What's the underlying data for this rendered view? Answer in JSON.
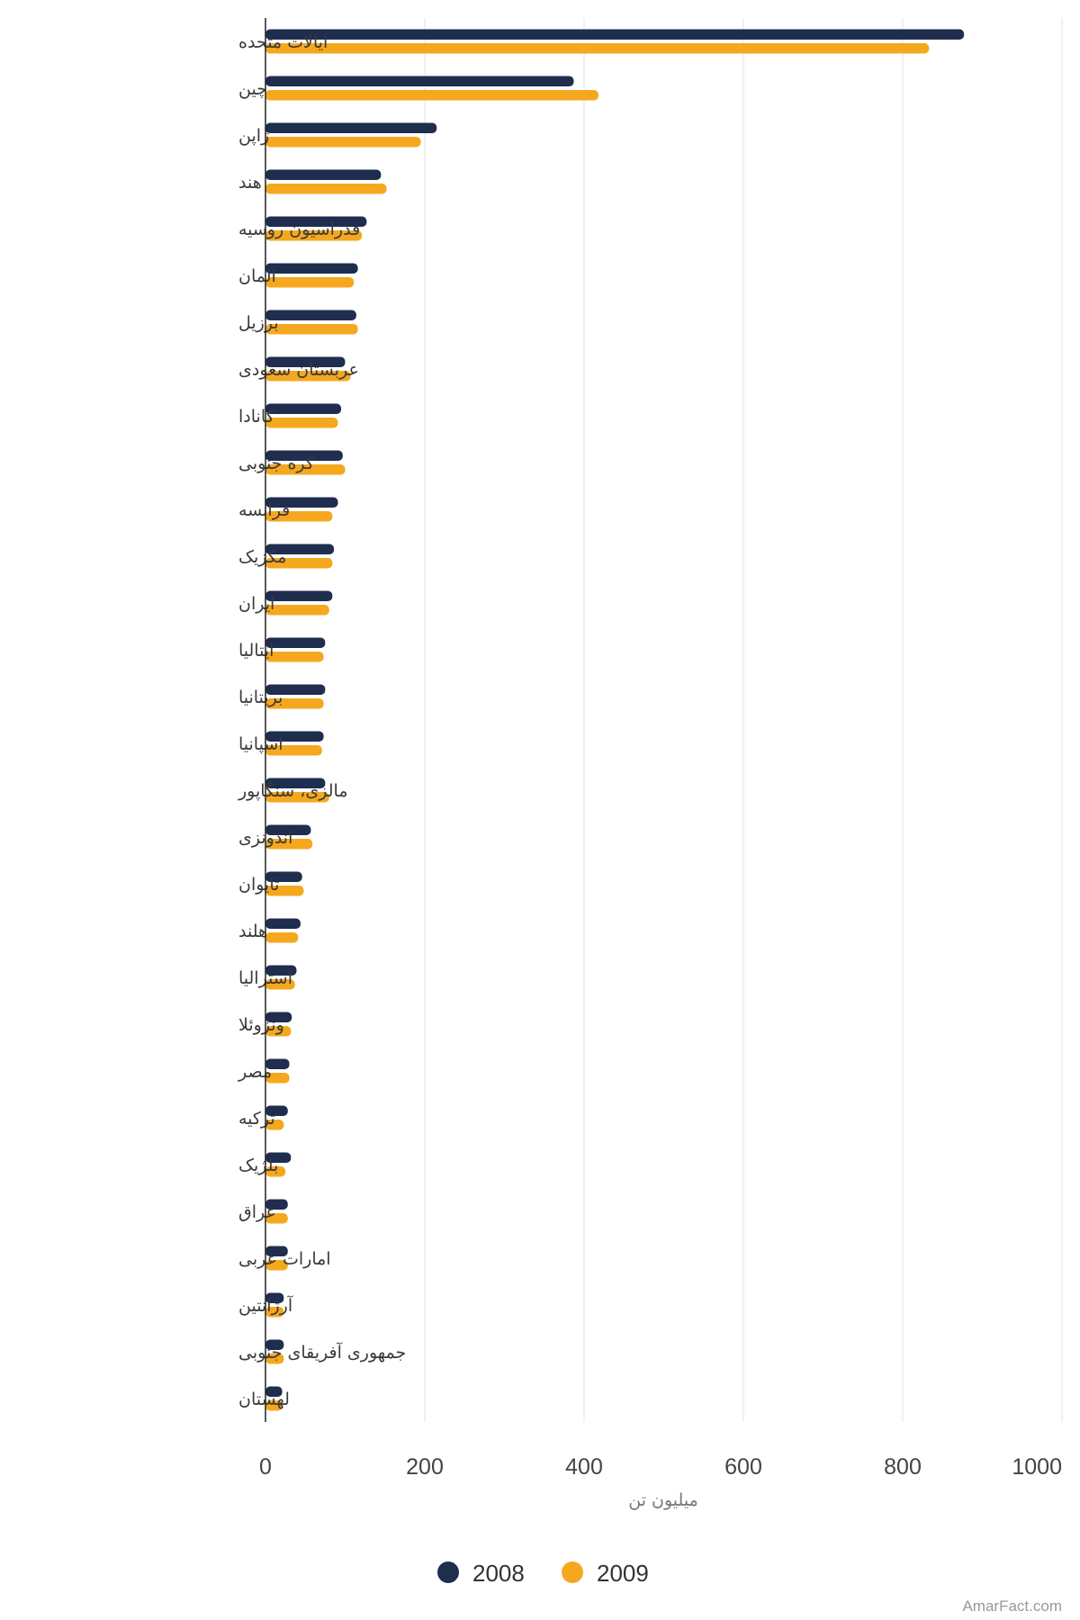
{
  "chart_data": {
    "type": "bar",
    "orientation": "horizontal",
    "categories": [
      "ایالات متحده",
      "چین",
      "ژاپن",
      "هند",
      "فدراسیون روسیه",
      "آلمان",
      "برزیل",
      "عربستان سعودی",
      "کانادا",
      "کره جنوبی",
      "فرانسه",
      "مکزیک",
      "ایران",
      "ایتالیا",
      "بریتانیا",
      "اسپانیا",
      "مالزی، سنگاپور",
      "اندونزی",
      "تایوان",
      "هلند",
      "استرالیا",
      "ونزوئلا",
      "مصر",
      "ترکیه",
      "بلژیک",
      "عراق",
      "امارات عربی",
      "آرژانتین",
      "جمهوری آفریقای جنوبی",
      "لهستان"
    ],
    "series": [
      {
        "name": "2008",
        "color": "#1f2d4f",
        "values": [
          877,
          387,
          215,
          145,
          127,
          116,
          114,
          100,
          95,
          97,
          91,
          86,
          84,
          75,
          75,
          73,
          75,
          57,
          46,
          44,
          39,
          33,
          30,
          28,
          32,
          28,
          28,
          23,
          23,
          21
        ]
      },
      {
        "name": "2009",
        "color": "#f5a81d",
        "values": [
          833,
          418,
          195,
          152,
          121,
          111,
          116,
          107,
          91,
          100,
          84,
          84,
          80,
          73,
          73,
          71,
          80,
          59,
          48,
          41,
          37,
          32,
          30,
          23,
          25,
          28,
          28,
          23,
          23,
          21
        ]
      }
    ],
    "xlabel": "میلیون تن",
    "xticks": [
      0,
      200,
      400,
      600,
      800,
      1000
    ],
    "xlim": [
      0,
      1000
    ],
    "grid": true,
    "legend_position": "bottom"
  },
  "credit": "AmarFact.com"
}
